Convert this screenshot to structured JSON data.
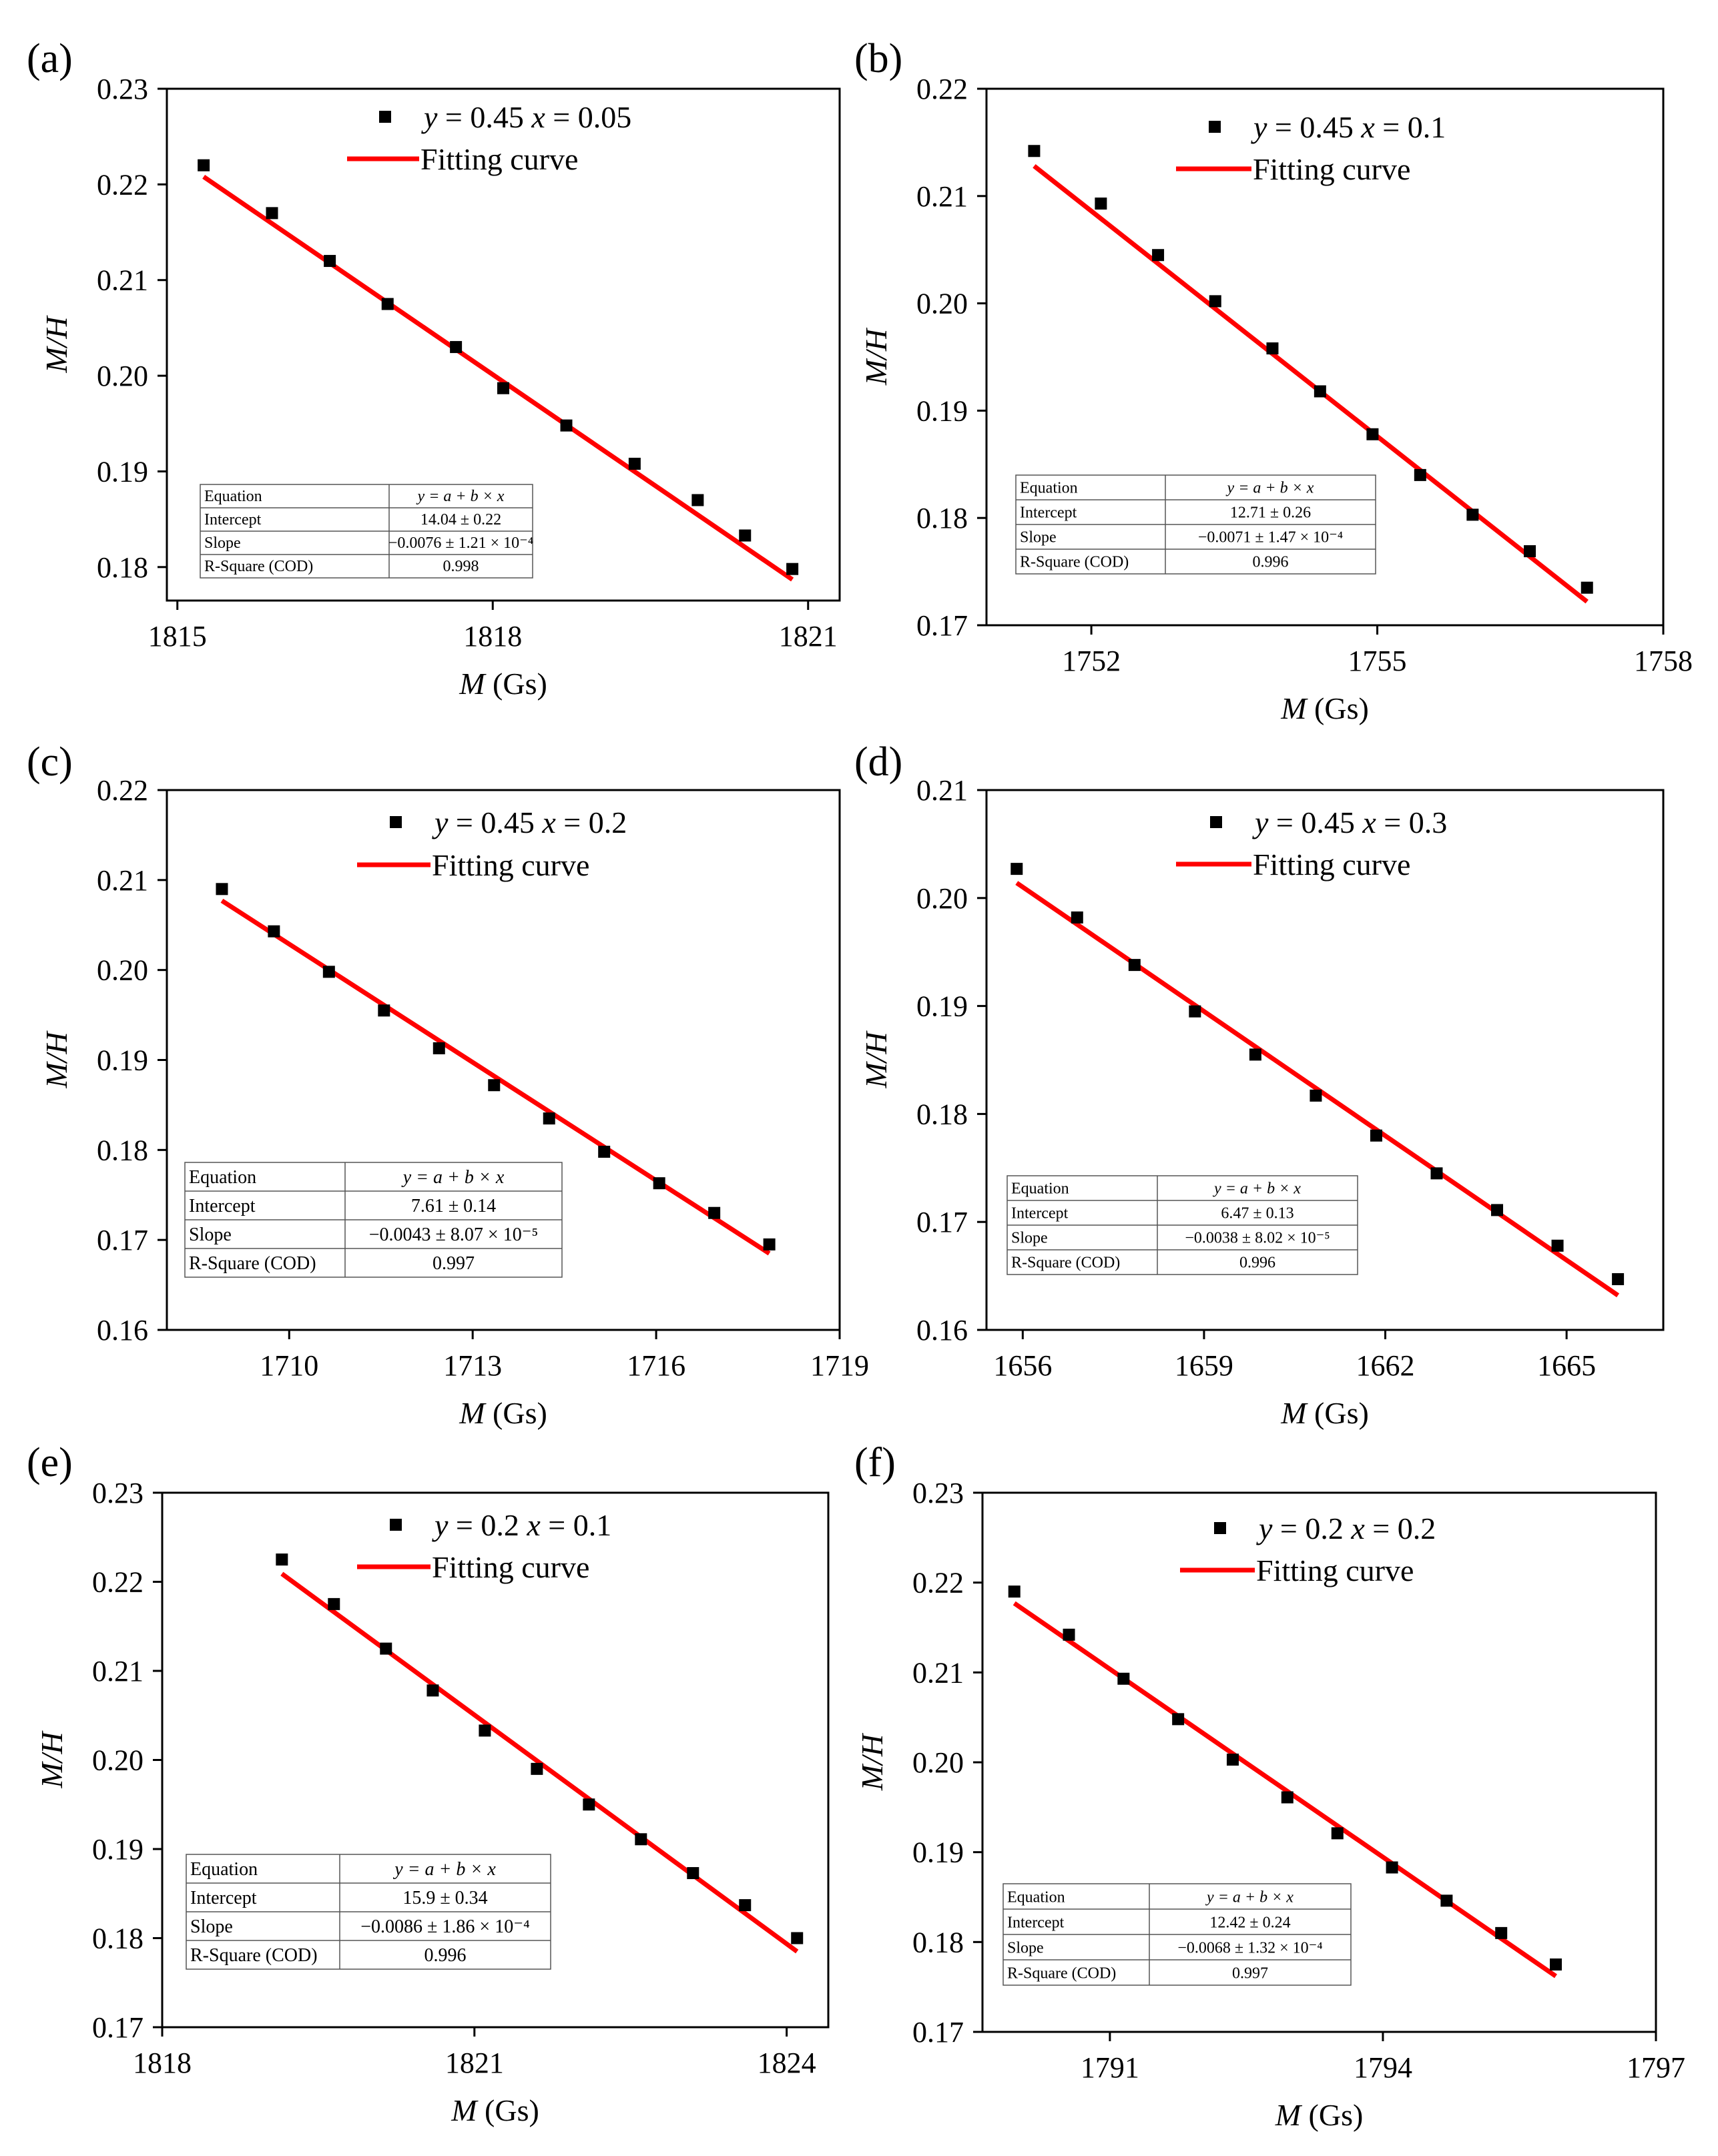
{
  "figure": {
    "marker_color": "#000000",
    "fit_color": "#ff0000",
    "fit_legend_label": "Fitting curve",
    "y_axis_label": "M/H",
    "x_axis_label_var": "M",
    "x_axis_label_unit": "(Gs)"
  },
  "chart_data": [
    {
      "panel": "(a)",
      "type": "scatter",
      "series": [
        {
          "name": "y = 0.45 x = 0.05",
          "legend_parts": [
            "y",
            " = 0.45 ",
            "x",
            " = 0.05"
          ]
        },
        {
          "name": "Fitting curve"
        }
      ],
      "x": [
        1815.25,
        1815.9,
        1816.45,
        1817.0,
        1817.65,
        1818.1,
        1818.7,
        1819.35,
        1819.95,
        1820.4,
        1820.85
      ],
      "y": [
        0.222,
        0.217,
        0.212,
        0.2075,
        0.203,
        0.1987,
        0.1948,
        0.1908,
        0.187,
        0.1833,
        0.1798
      ],
      "fit": {
        "x": [
          1815.25,
          1820.85
        ],
        "y": [
          0.2208,
          0.1787
        ]
      },
      "xlim": [
        1814.9,
        1821.3
      ],
      "ylim": [
        0.1765,
        0.23
      ],
      "xticks": [
        1815,
        1818,
        1821
      ],
      "yticks": [
        0.18,
        0.19,
        0.2,
        0.21,
        0.22,
        0.23
      ],
      "ytick_labels": [
        "0.18",
        "0.19",
        "0.20",
        "0.21",
        "0.22",
        "0.23"
      ],
      "xlabel": "M (Gs)",
      "ylabel": "M/H",
      "table": [
        [
          "Equation",
          "y = a + b × x"
        ],
        [
          "Intercept",
          "14.04 ± 0.22"
        ],
        [
          "Slope",
          "−0.0076 ± 1.21 × 10⁻⁴"
        ],
        [
          "R-Square (COD)",
          "0.998"
        ]
      ]
    },
    {
      "panel": "(b)",
      "type": "scatter",
      "series": [
        {
          "name": "y = 0.45 x = 0.1",
          "legend_parts": [
            "y",
            " = 0.45 ",
            "x",
            " = 0.1"
          ]
        },
        {
          "name": "Fitting curve"
        }
      ],
      "x": [
        1751.4,
        1752.1,
        1752.7,
        1753.3,
        1753.9,
        1754.4,
        1754.95,
        1755.45,
        1756.0,
        1756.6,
        1757.2
      ],
      "y": [
        0.2142,
        0.2093,
        0.2045,
        0.2002,
        0.1958,
        0.1918,
        0.1878,
        0.184,
        0.1803,
        0.1769,
        0.1735
      ],
      "fit": {
        "x": [
          1751.4,
          1757.2
        ],
        "y": [
          0.2128,
          0.1722
        ]
      },
      "xlim": [
        1750.9,
        1758.0
      ],
      "ylim": [
        0.17,
        0.22
      ],
      "xticks": [
        1752,
        1755,
        1758
      ],
      "yticks": [
        0.17,
        0.18,
        0.19,
        0.2,
        0.21,
        0.22
      ],
      "ytick_labels": [
        "0.17",
        "0.18",
        "0.19",
        "0.20",
        "0.21",
        "0.22"
      ],
      "xlabel": "M (Gs)",
      "ylabel": "M/H",
      "table": [
        [
          "Equation",
          "y = a + b × x"
        ],
        [
          "Intercept",
          "12.71 ± 0.26"
        ],
        [
          "Slope",
          "−0.0071 ± 1.47 × 10⁻⁴"
        ],
        [
          "R-Square (COD)",
          "0.996"
        ]
      ]
    },
    {
      "panel": "(c)",
      "type": "scatter",
      "series": [
        {
          "name": "y = 0.45 x = 0.2",
          "legend_parts": [
            "y",
            " = 0.45 ",
            "x",
            " = 0.2"
          ]
        },
        {
          "name": "Fitting curve"
        }
      ],
      "x": [
        1708.9,
        1709.75,
        1710.65,
        1711.55,
        1712.45,
        1713.35,
        1714.25,
        1715.15,
        1716.05,
        1716.95,
        1717.85
      ],
      "y": [
        0.209,
        0.2043,
        0.1998,
        0.1955,
        0.1913,
        0.1872,
        0.1835,
        0.1798,
        0.1763,
        0.173,
        0.1695
      ],
      "fit": {
        "x": [
          1708.9,
          1717.85
        ],
        "y": [
          0.2077,
          0.1685
        ]
      },
      "xlim": [
        1708.0,
        1719.0
      ],
      "ylim": [
        0.16,
        0.22
      ],
      "xticks": [
        1710,
        1713,
        1716,
        1719
      ],
      "yticks": [
        0.16,
        0.17,
        0.18,
        0.19,
        0.2,
        0.21,
        0.22
      ],
      "ytick_labels": [
        "0.16",
        "0.17",
        "0.18",
        "0.19",
        "0.20",
        "0.21",
        "0.22"
      ],
      "xlabel": "M (Gs)",
      "ylabel": "M/H",
      "table": [
        [
          "Equation",
          "y = a + b × x"
        ],
        [
          "Intercept",
          "7.61 ± 0.14"
        ],
        [
          "Slope",
          "−0.0043 ± 8.07 × 10⁻⁵"
        ],
        [
          "R-Square (COD)",
          "0.997"
        ]
      ]
    },
    {
      "panel": "(d)",
      "type": "scatter",
      "series": [
        {
          "name": "y = 0.45 x = 0.3",
          "legend_parts": [
            "y",
            " = 0.45 ",
            "x",
            " = 0.3"
          ]
        },
        {
          "name": "Fitting curve"
        }
      ],
      "x": [
        1655.9,
        1656.9,
        1657.85,
        1658.85,
        1659.85,
        1660.85,
        1661.85,
        1662.85,
        1663.85,
        1664.85,
        1665.85
      ],
      "y": [
        0.2027,
        0.1982,
        0.1938,
        0.1895,
        0.1855,
        0.1817,
        0.178,
        0.1745,
        0.1711,
        0.1678,
        0.1647
      ],
      "fit": {
        "x": [
          1655.9,
          1665.85
        ],
        "y": [
          0.2014,
          0.1632
        ]
      },
      "xlim": [
        1655.4,
        1666.6
      ],
      "ylim": [
        0.16,
        0.21
      ],
      "xticks": [
        1656,
        1659,
        1662,
        1665
      ],
      "yticks": [
        0.16,
        0.17,
        0.18,
        0.19,
        0.2,
        0.21
      ],
      "ytick_labels": [
        "0.16",
        "0.17",
        "0.18",
        "0.19",
        "0.20",
        "0.21"
      ],
      "xlabel": "M (Gs)",
      "ylabel": "M/H",
      "table": [
        [
          "Equation",
          "y = a + b × x"
        ],
        [
          "Intercept",
          "6.47 ± 0.13"
        ],
        [
          "Slope",
          "−0.0038 ± 8.02 × 10⁻⁵"
        ],
        [
          "R-Square (COD)",
          "0.996"
        ]
      ]
    },
    {
      "panel": "(e)",
      "type": "scatter",
      "series": [
        {
          "name": "y = 0.2 x = 0.1",
          "legend_parts": [
            "y",
            " = 0.2 ",
            "x",
            " = 0.1"
          ]
        },
        {
          "name": "Fitting curve"
        }
      ],
      "x": [
        1819.15,
        1819.65,
        1820.15,
        1820.6,
        1821.1,
        1821.6,
        1822.1,
        1822.6,
        1823.1,
        1823.6,
        1824.1
      ],
      "y": [
        0.2225,
        0.2175,
        0.2125,
        0.2078,
        0.2033,
        0.199,
        0.195,
        0.1911,
        0.1873,
        0.1837,
        0.18
      ],
      "fit": {
        "x": [
          1819.15,
          1824.1
        ],
        "y": [
          0.2209,
          0.1785
        ]
      },
      "xlim": [
        1818.0,
        1824.4
      ],
      "ylim": [
        0.17,
        0.23
      ],
      "xticks": [
        1818,
        1821,
        1824
      ],
      "yticks": [
        0.17,
        0.18,
        0.19,
        0.2,
        0.21,
        0.22,
        0.23
      ],
      "ytick_labels": [
        "0.17",
        "0.18",
        "0.19",
        "0.20",
        "0.21",
        "0.22",
        "0.23"
      ],
      "xlabel": "M (Gs)",
      "ylabel": "M/H",
      "table": [
        [
          "Equation",
          "y = a + b × x"
        ],
        [
          "Intercept",
          "15.9 ± 0.34"
        ],
        [
          "Slope",
          "−0.0086 ± 1.86 × 10⁻⁴"
        ],
        [
          "R-Square (COD)",
          "0.996"
        ]
      ]
    },
    {
      "panel": "(f)",
      "type": "scatter",
      "series": [
        {
          "name": "y = 0.2 x = 0.2",
          "legend_parts": [
            "y",
            " = 0.2 ",
            "x",
            " = 0.2"
          ]
        },
        {
          "name": "Fitting curve"
        }
      ],
      "x": [
        1789.95,
        1790.55,
        1791.15,
        1791.75,
        1792.35,
        1792.95,
        1793.5,
        1794.1,
        1794.7,
        1795.3,
        1795.9
      ],
      "y": [
        0.219,
        0.2142,
        0.2093,
        0.2048,
        0.2003,
        0.1961,
        0.1921,
        0.1883,
        0.1846,
        0.181,
        0.1775
      ],
      "fit": {
        "x": [
          1789.95,
          1795.9
        ],
        "y": [
          0.2177,
          0.1762
        ]
      },
      "xlim": [
        1789.6,
        1797.0
      ],
      "ylim": [
        0.17,
        0.23
      ],
      "xticks": [
        1791,
        1794,
        1797
      ],
      "yticks": [
        0.17,
        0.18,
        0.19,
        0.2,
        0.21,
        0.22,
        0.23
      ],
      "ytick_labels": [
        "0.17",
        "0.18",
        "0.19",
        "0.20",
        "0.21",
        "0.22",
        "0.23"
      ],
      "xlabel": "M (Gs)",
      "ylabel": "M/H",
      "table": [
        [
          "Equation",
          "y = a + b × x"
        ],
        [
          "Intercept",
          "12.42 ± 0.24"
        ],
        [
          "Slope",
          "−0.0068 ± 1.32 × 10⁻⁴"
        ],
        [
          "R-Square (COD)",
          "0.997"
        ]
      ]
    }
  ]
}
